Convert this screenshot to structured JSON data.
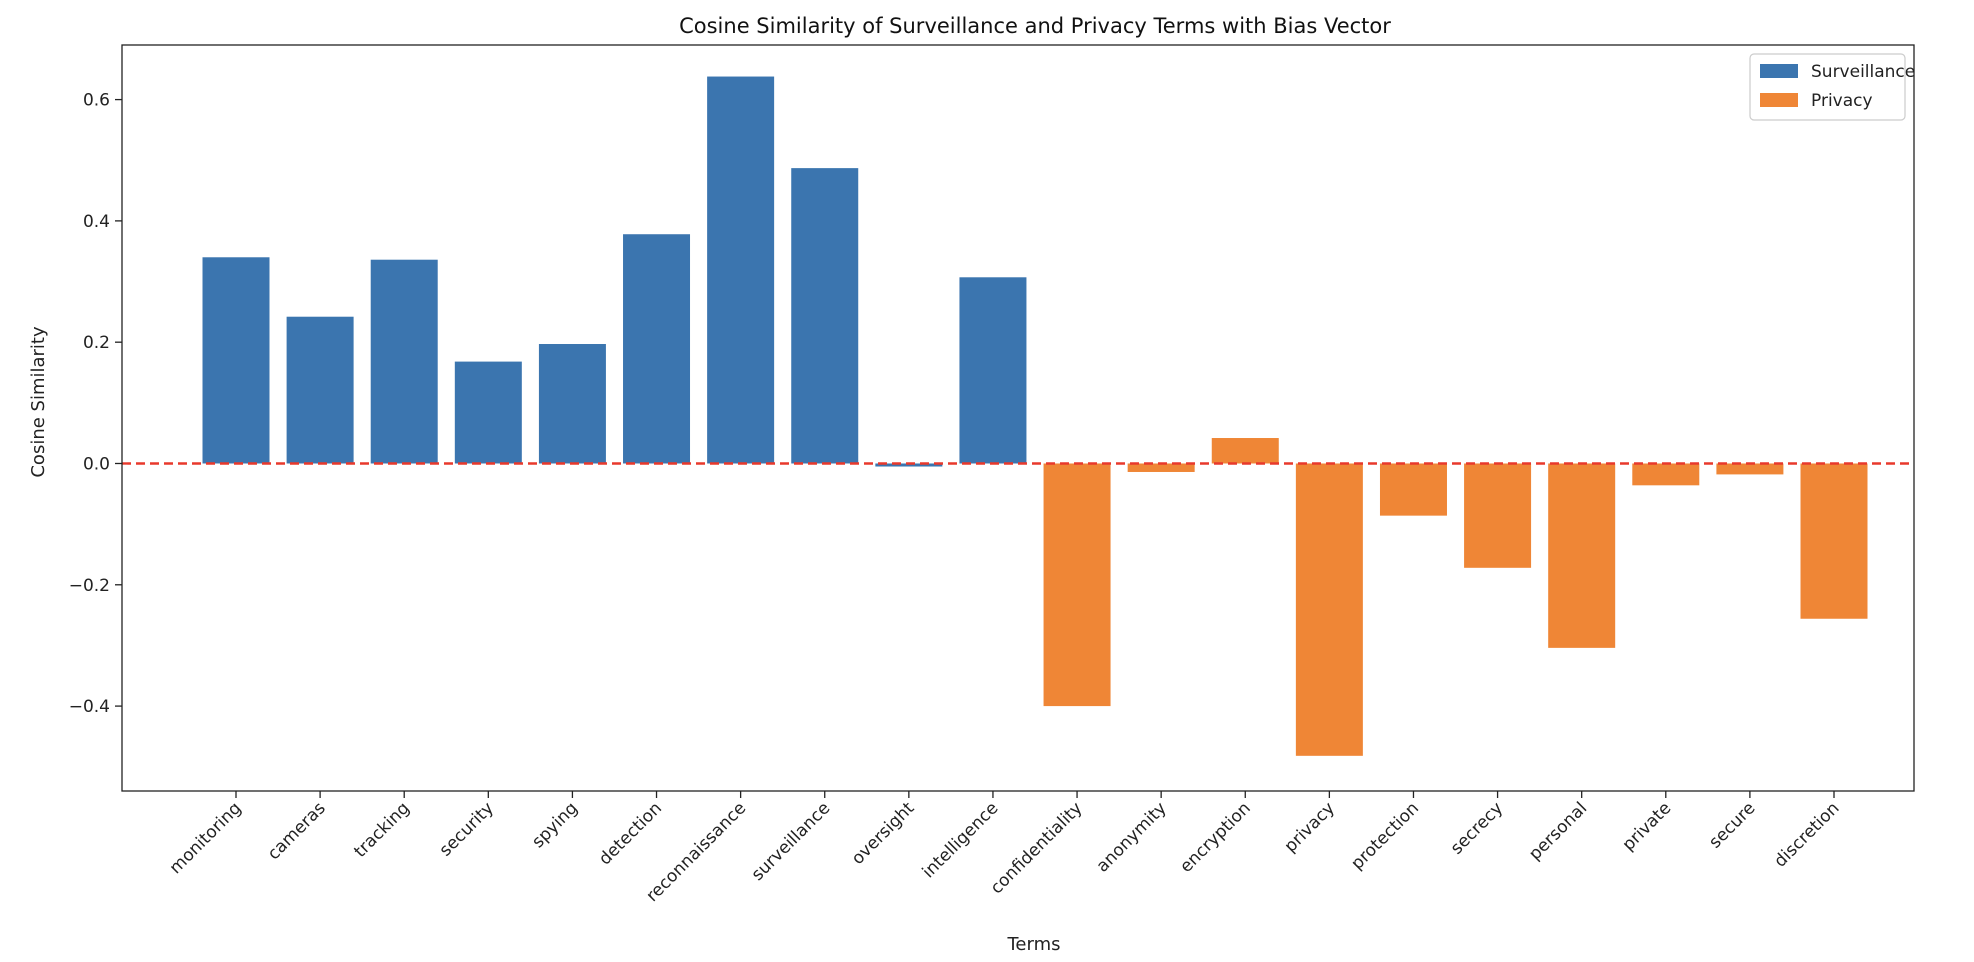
{
  "chart_data": {
    "type": "bar",
    "title": "Cosine Similarity of Surveillance and Privacy Terms with Bias Vector",
    "xlabel": "Terms",
    "ylabel": "Cosine Similarity",
    "ylim": [
      -0.54,
      0.69
    ],
    "yticks": [
      -0.4,
      -0.2,
      0.0,
      0.2,
      0.4,
      0.6
    ],
    "ytick_labels": [
      "−0.4",
      "−0.2",
      "0.0",
      "0.2",
      "0.4",
      "0.6"
    ],
    "grid": false,
    "legend_position": "top-right",
    "reference_line": {
      "y": 0.0,
      "color": "#e8392c",
      "style": "dashed"
    },
    "categories": [
      "monitoring",
      "cameras",
      "tracking",
      "security",
      "spying",
      "detection",
      "reconnaissance",
      "surveillance",
      "oversight",
      "intelligence",
      "confidentiality",
      "anonymity",
      "encryption",
      "privacy",
      "protection",
      "secrecy",
      "personal",
      "private",
      "secure",
      "discretion"
    ],
    "series": [
      {
        "name": "Surveillance",
        "color": "#3b75af",
        "values": [
          0.34,
          0.242,
          0.336,
          0.168,
          0.197,
          0.378,
          0.638,
          0.487,
          -0.005,
          0.307,
          null,
          null,
          null,
          null,
          null,
          null,
          null,
          null,
          null,
          null
        ]
      },
      {
        "name": "Privacy",
        "color": "#ef8636",
        "values": [
          null,
          null,
          null,
          null,
          null,
          null,
          null,
          null,
          null,
          null,
          -0.4,
          -0.014,
          0.042,
          -0.482,
          -0.086,
          -0.172,
          -0.304,
          -0.036,
          -0.018,
          -0.256
        ]
      }
    ]
  }
}
